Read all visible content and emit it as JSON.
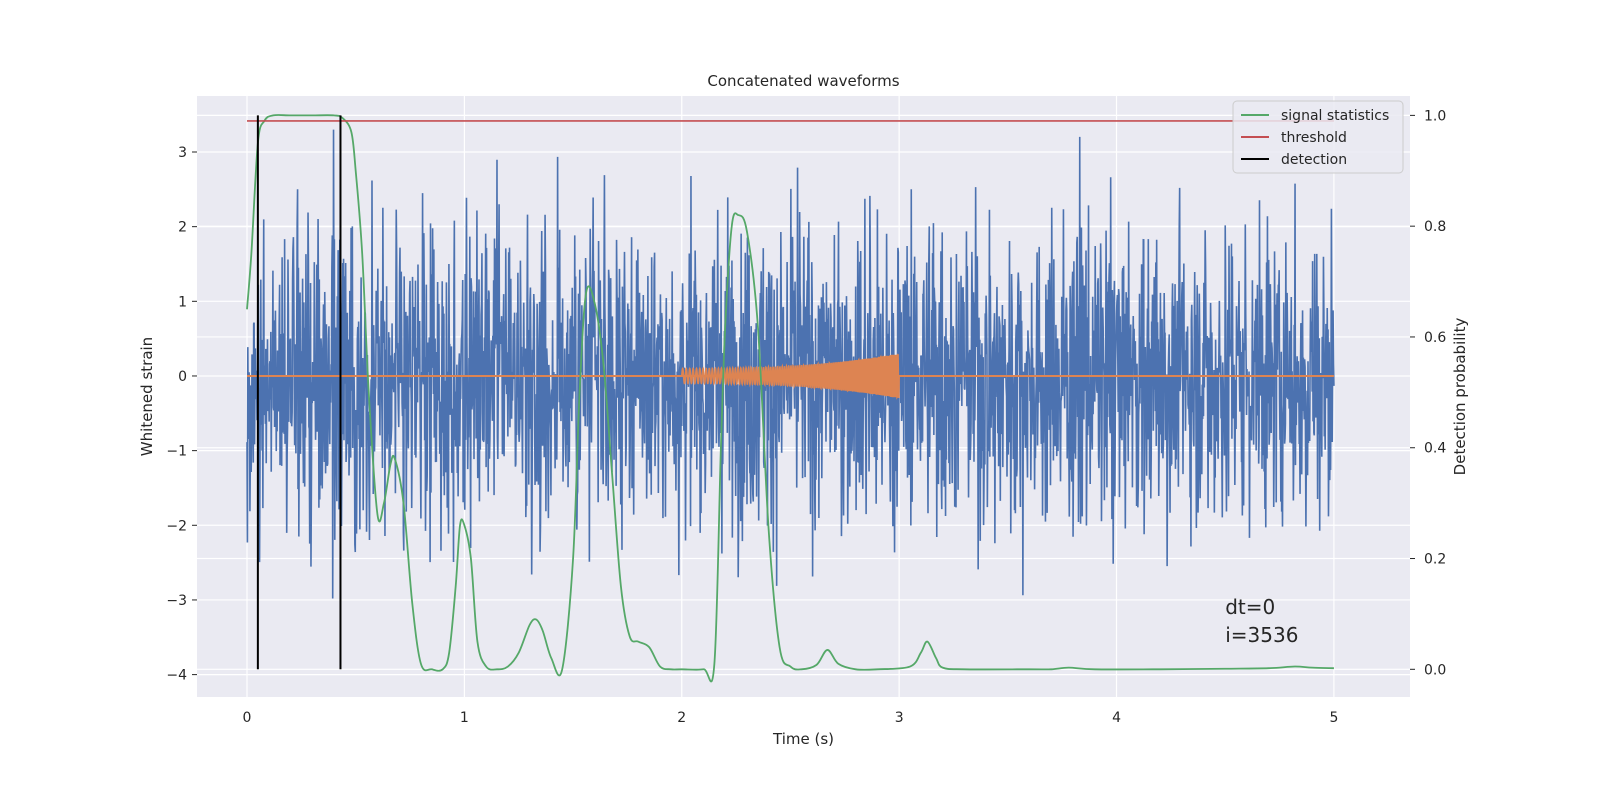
{
  "chart_data": {
    "type": "line",
    "title": "Concatenated waveforms",
    "xlabel": "Time (s)",
    "ylabel": "Whitened strain",
    "y2label": "Detection probability",
    "xlim": [
      -0.23,
      5.35
    ],
    "ylim": [
      -4.3,
      3.75
    ],
    "y2lim": [
      -0.05,
      1.035
    ],
    "xticks": [
      "0",
      "1",
      "2",
      "3",
      "4",
      "5"
    ],
    "yticks": [
      "3",
      "2",
      "1",
      "0",
      "−1",
      "−2",
      "−3",
      "−4"
    ],
    "y2ticks": [
      "1.0",
      "0.8",
      "0.6",
      "0.4",
      "0.2",
      "0.0"
    ],
    "grid": true,
    "legend_position": "top-right",
    "series": [
      {
        "name": "",
        "axis": "left",
        "color": "#4c72b0",
        "kind": "noise",
        "x_range": [
          0,
          5
        ],
        "amplitude": 1.0
      },
      {
        "name": "",
        "axis": "left",
        "color": "#dd8452",
        "kind": "chirp",
        "x_range": [
          2.0,
          3.0
        ],
        "amplitude_start": 0.1,
        "amplitude_end": 0.3
      },
      {
        "name": "signal statistics",
        "axis": "right",
        "color": "#55a868",
        "x": [
          0,
          0.02,
          0.05,
          0.08,
          0.12,
          0.2,
          0.3,
          0.4,
          0.44,
          0.48,
          0.5,
          0.53,
          0.56,
          0.6,
          0.63,
          0.66,
          0.68,
          0.72,
          0.76,
          0.8,
          0.85,
          0.9,
          0.93,
          0.96,
          0.98,
          1.0,
          1.03,
          1.06,
          1.1,
          1.15,
          1.2,
          1.25,
          1.3,
          1.33,
          1.36,
          1.4,
          1.45,
          1.5,
          1.53,
          1.56,
          1.6,
          1.64,
          1.68,
          1.72,
          1.76,
          1.8,
          1.85,
          1.9,
          1.95,
          2.0,
          2.1,
          2.15,
          2.18,
          2.2,
          2.23,
          2.26,
          2.3,
          2.35,
          2.4,
          2.45,
          2.5,
          2.55,
          2.62,
          2.67,
          2.72,
          2.8,
          2.9,
          3.05,
          3.1,
          3.13,
          3.17,
          3.2,
          3.3,
          3.6,
          3.7,
          3.78,
          3.9,
          4.2,
          4.5,
          4.7,
          4.82,
          4.9,
          5.0
        ],
        "values": [
          0.65,
          0.75,
          0.95,
          0.99,
          1.0,
          1.0,
          1.0,
          1.0,
          0.995,
          0.97,
          0.9,
          0.75,
          0.5,
          0.28,
          0.3,
          0.37,
          0.38,
          0.3,
          0.12,
          0.01,
          0.0,
          0.0,
          0.03,
          0.15,
          0.26,
          0.26,
          0.2,
          0.05,
          0.005,
          0.0,
          0.005,
          0.03,
          0.08,
          0.09,
          0.07,
          0.02,
          0.0,
          0.2,
          0.5,
          0.68,
          0.66,
          0.55,
          0.35,
          0.15,
          0.06,
          0.05,
          0.04,
          0.005,
          0.0,
          0.0,
          0.0,
          0.01,
          0.4,
          0.62,
          0.8,
          0.82,
          0.79,
          0.62,
          0.25,
          0.04,
          0.005,
          0.0,
          0.008,
          0.035,
          0.01,
          0.0,
          0.0,
          0.005,
          0.03,
          0.05,
          0.02,
          0.003,
          0.0,
          0.0,
          0.0,
          0.003,
          0.0,
          0.0,
          0.001,
          0.002,
          0.005,
          0.003,
          0.002
        ]
      },
      {
        "name": "threshold",
        "axis": "right",
        "color": "#c44e52",
        "x": [
          0,
          5
        ],
        "values": [
          0.99,
          0.99
        ]
      },
      {
        "name": "detection",
        "axis": "right",
        "color": "#000000",
        "kind": "vertical",
        "x": [
          0.05,
          0.43
        ],
        "values": [
          0.0,
          1.0
        ]
      }
    ],
    "annotations": [
      "dt=0",
      "i=3536"
    ]
  }
}
